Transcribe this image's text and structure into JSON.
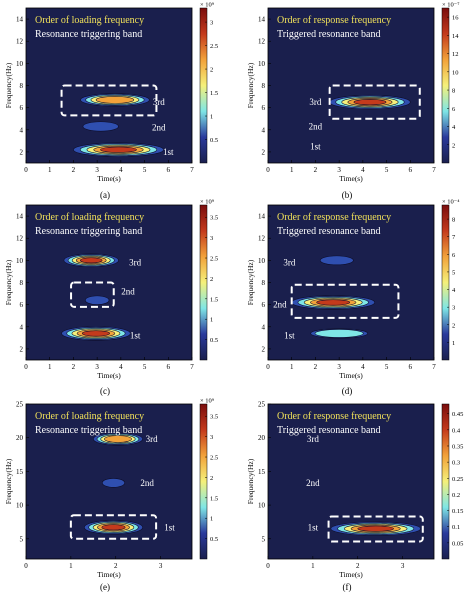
{
  "colors": {
    "background": "#1a1f4d",
    "colorbar": [
      "#1a1f4d",
      "#2a3a9c",
      "#7fe6e6",
      "#f5f07a",
      "#f2a23a",
      "#c43a1c",
      "#7a0d0d"
    ],
    "title_text": "#f2e25a",
    "label_text": "#ffffff",
    "band_box": "#ffffff"
  },
  "chart_data": [
    {
      "type": "heatmap",
      "panel_label": "(a)",
      "xlabel": "Time(s)",
      "ylabel": "Frequency(Hz)",
      "xlim": [
        0,
        7
      ],
      "ylim": [
        1,
        15
      ],
      "xticks": [
        "0",
        "1",
        "2",
        "3",
        "4",
        "5",
        "6",
        "7"
      ],
      "yticks": [
        "2",
        "4",
        "6",
        "8",
        "10",
        "12",
        "14"
      ],
      "title": "Order of loading frequency",
      "subtitle": "Resonance triggering band",
      "colorbar": {
        "exponent": "× 10⁹",
        "ticks": [
          "0.5",
          "1",
          "1.5",
          "2",
          "2.5",
          "3"
        ],
        "max": 3.3
      },
      "blobs": [
        {
          "t": [
            2.0,
            5.8
          ],
          "f": 2.2,
          "peak": 3.2
        },
        {
          "t": [
            2.4,
            3.9
          ],
          "f": 4.3,
          "peak": 0.9
        },
        {
          "t": [
            2.3,
            5.2
          ],
          "f": 6.7,
          "peak": 2.6
        }
      ],
      "order_labels": [
        {
          "text": "1st",
          "t": 6.0,
          "f": 2.0
        },
        {
          "text": "2nd",
          "t": 5.6,
          "f": 4.2
        },
        {
          "text": "3rd",
          "t": 5.6,
          "f": 6.5
        }
      ],
      "boxes": [
        {
          "t": [
            1.5,
            5.5
          ],
          "f": [
            5.3,
            8.0
          ]
        }
      ]
    },
    {
      "type": "heatmap",
      "panel_label": "(b)",
      "xlabel": "Time(s)",
      "ylabel": "Frequency(Hz)",
      "xlim": [
        0,
        7
      ],
      "ylim": [
        1,
        15
      ],
      "xticks": [
        "0",
        "1",
        "2",
        "3",
        "4",
        "5",
        "6",
        "7"
      ],
      "yticks": [
        "2",
        "4",
        "6",
        "8",
        "10",
        "12",
        "14"
      ],
      "title": "Order of response frequency",
      "subtitle": "Triggered resonance band",
      "colorbar": {
        "exponent": "× 10⁻⁷",
        "ticks": [
          "2",
          "4",
          "6",
          "8",
          "10",
          "12",
          "14",
          "16"
        ],
        "max": 17
      },
      "blobs": [
        {
          "t": [
            2.6,
            6.0
          ],
          "f": 6.5,
          "peak": 16.5
        }
      ],
      "order_labels": [
        {
          "text": "1st",
          "t": 2.0,
          "f": 2.5
        },
        {
          "text": "2nd",
          "t": 2.0,
          "f": 4.3
        },
        {
          "text": "3rd",
          "t": 2.0,
          "f": 6.5
        }
      ],
      "boxes": [
        {
          "t": [
            2.6,
            6.4
          ],
          "f": [
            5.0,
            8.0
          ]
        }
      ]
    },
    {
      "type": "heatmap",
      "panel_label": "(c)",
      "xlabel": "Time(s)",
      "ylabel": "Frequency(Hz)",
      "xlim": [
        0,
        7
      ],
      "ylim": [
        1,
        15
      ],
      "xticks": [
        "0",
        "1",
        "2",
        "3",
        "4",
        "5",
        "6",
        "7"
      ],
      "yticks": [
        "2",
        "4",
        "6",
        "8",
        "10",
        "12",
        "14"
      ],
      "title": "Order of loading frequency",
      "subtitle": "Resonance triggering band",
      "colorbar": {
        "exponent": "× 10⁹",
        "ticks": [
          "0.5",
          "1",
          "1.5",
          "2",
          "2.5",
          "3",
          "3.5"
        ],
        "max": 3.8
      },
      "blobs": [
        {
          "t": [
            1.5,
            4.4
          ],
          "f": 3.4,
          "peak": 3.7
        },
        {
          "t": [
            2.5,
            3.5
          ],
          "f": 6.4,
          "peak": 0.6
        },
        {
          "t": [
            1.6,
            3.9
          ],
          "f": 10.0,
          "peak": 3.2
        }
      ],
      "order_labels": [
        {
          "text": "1st",
          "t": 4.6,
          "f": 3.2
        },
        {
          "text": "2nd",
          "t": 4.3,
          "f": 7.2
        },
        {
          "text": "3rd",
          "t": 4.6,
          "f": 9.8
        }
      ],
      "boxes": [
        {
          "t": [
            1.9,
            3.7
          ],
          "f": [
            5.8,
            8.0
          ]
        }
      ]
    },
    {
      "type": "heatmap",
      "panel_label": "(d)",
      "xlabel": "Time(s)",
      "ylabel": "Frequency(Hz)",
      "xlim": [
        0,
        7
      ],
      "ylim": [
        1,
        15
      ],
      "xticks": [
        "0",
        "1",
        "2",
        "3",
        "4",
        "5",
        "6",
        "7"
      ],
      "yticks": [
        "2",
        "4",
        "6",
        "8",
        "10",
        "12",
        "14"
      ],
      "title": "Order of response frequency",
      "subtitle": "Triggered resonance band",
      "colorbar": {
        "exponent": "× 10⁻⁴",
        "ticks": [
          "1",
          "2",
          "3",
          "4",
          "5",
          "6",
          "7",
          "8"
        ],
        "max": 8.8
      },
      "blobs": [
        {
          "t": [
            1.8,
            4.2
          ],
          "f": 3.4,
          "peak": 2.5
        },
        {
          "t": [
            1.0,
            4.5
          ],
          "f": 6.2,
          "peak": 8.5
        },
        {
          "t": [
            2.2,
            3.6
          ],
          "f": 10.0,
          "peak": 1.8
        }
      ],
      "order_labels": [
        {
          "text": "1st",
          "t": 0.9,
          "f": 3.2
        },
        {
          "text": "2nd",
          "t": 0.5,
          "f": 6.0
        },
        {
          "text": "3rd",
          "t": 0.9,
          "f": 9.8
        }
      ],
      "boxes": [
        {
          "t": [
            1.0,
            5.5
          ],
          "f": [
            4.8,
            7.8
          ]
        }
      ]
    },
    {
      "type": "heatmap",
      "panel_label": "(e)",
      "xlabel": "Time(s)",
      "ylabel": "Frequency(Hz)",
      "xlim": [
        0,
        3.7
      ],
      "ylim": [
        2,
        25
      ],
      "xticks": [
        "0",
        "1",
        "2",
        "3"
      ],
      "yticks": [
        "5",
        "10",
        "15",
        "20",
        "25"
      ],
      "title": "Order of loading frequency",
      "subtitle": "Resonance triggering band",
      "colorbar": {
        "exponent": "× 10⁹",
        "ticks": [
          "0.5",
          "1",
          "1.5",
          "2",
          "2.5",
          "3",
          "3.5"
        ],
        "max": 3.8
      },
      "blobs": [
        {
          "t": [
            1.3,
            2.6
          ],
          "f": 6.7,
          "peak": 3.7
        },
        {
          "t": [
            1.7,
            2.2
          ],
          "f": 13.3,
          "peak": 0.7
        },
        {
          "t": [
            1.5,
            2.6
          ],
          "f": 19.8,
          "peak": 2.9
        }
      ],
      "order_labels": [
        {
          "text": "1st",
          "t": 3.2,
          "f": 6.7
        },
        {
          "text": "2nd",
          "t": 2.7,
          "f": 13.3
        },
        {
          "text": "3rd",
          "t": 2.8,
          "f": 19.8
        }
      ],
      "boxes": [
        {
          "t": [
            1.0,
            2.9
          ],
          "f": [
            5.0,
            8.5
          ]
        }
      ]
    },
    {
      "type": "heatmap",
      "panel_label": "(f)",
      "xlabel": "Time(s)",
      "ylabel": "Frequency(Hz)",
      "xlim": [
        0,
        3.7
      ],
      "ylim": [
        2,
        25
      ],
      "xticks": [
        "0",
        "1",
        "2",
        "3"
      ],
      "yticks": [
        "5",
        "10",
        "15",
        "20",
        "25"
      ],
      "title": "Order of response frequency",
      "subtitle": "Triggered resonance band",
      "colorbar": {
        "exponent": "",
        "ticks": [
          "0.05",
          "0.1",
          "0.15",
          "0.2",
          "0.25",
          "0.3",
          "0.35",
          "0.4",
          "0.45"
        ],
        "max": 0.48
      },
      "blobs": [
        {
          "t": [
            1.4,
            3.4
          ],
          "f": 6.5,
          "peak": 0.45
        }
      ],
      "order_labels": [
        {
          "text": "1st",
          "t": 1.0,
          "f": 6.7
        },
        {
          "text": "2nd",
          "t": 1.0,
          "f": 13.3
        },
        {
          "text": "3rd",
          "t": 1.0,
          "f": 19.8
        }
      ],
      "boxes": [
        {
          "t": [
            1.35,
            3.45
          ],
          "f": [
            4.6,
            8.3
          ]
        }
      ]
    }
  ]
}
